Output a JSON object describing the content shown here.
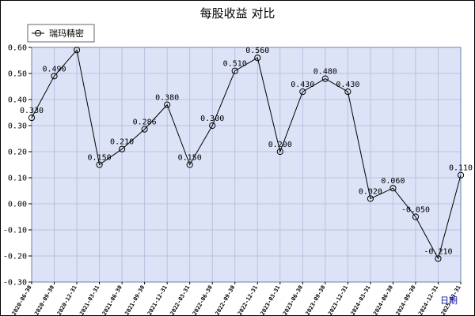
{
  "chart_data": {
    "type": "line",
    "title": "每股收益 对比",
    "xlabel": "日期",
    "ylabel": "",
    "ylim": [
      -0.3,
      0.6
    ],
    "yticks": [
      "0.60",
      "0.50",
      "0.40",
      "0.30",
      "0.20",
      "0.10",
      "0.00",
      "-0.10",
      "-0.20",
      "-0.30"
    ],
    "grid": true,
    "legend": "top-left",
    "categories": [
      "2020-06-30",
      "2020-09-30",
      "2020-12-31",
      "2021-03-31",
      "2021-06-30",
      "2021-09-30",
      "2021-12-31",
      "2022-03-31",
      "2022-06-30",
      "2022-09-30",
      "2022-12-31",
      "2023-03-31",
      "2023-06-30",
      "2023-09-30",
      "2023-12-31",
      "2024-03-31",
      "2024-06-30",
      "2024-09-30",
      "2024-12-31",
      "2025-03-31"
    ],
    "series": [
      {
        "name": "瑞玛精密",
        "values": [
          0.33,
          0.49,
          0.59,
          0.15,
          0.21,
          0.286,
          0.38,
          0.15,
          0.3,
          0.51,
          0.56,
          0.2,
          0.43,
          0.48,
          0.43,
          0.02,
          0.06,
          -0.05,
          -0.21,
          0.11
        ],
        "labels": [
          "0.330",
          "0.490",
          "",
          "0.150",
          "0.210",
          "0.286",
          "0.380",
          "0.150",
          "0.300",
          "0.510",
          "0.560",
          "0.200",
          "0.430",
          "0.480",
          "0.430",
          "0.020",
          "0.060",
          "-0.050",
          "-0.210",
          "0.110"
        ]
      }
    ],
    "colors": {
      "plot_bg": "#dde3f7",
      "grid": "#b8c0e0",
      "line": "#000000"
    }
  }
}
